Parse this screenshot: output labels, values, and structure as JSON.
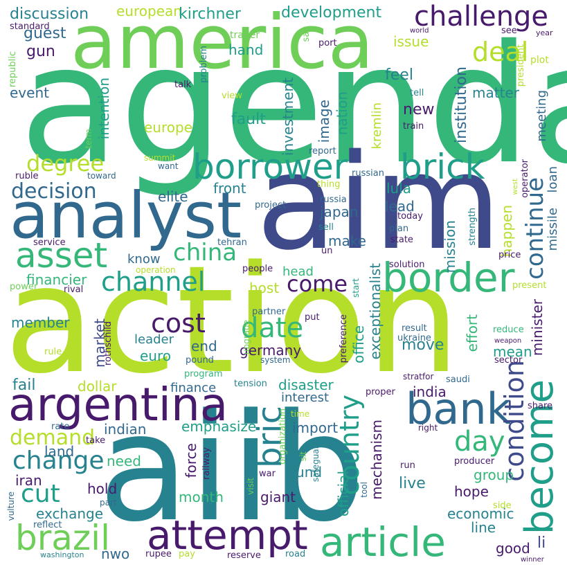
{
  "palette": {
    "purple": "#481a6c",
    "indigo": "#3e4a89",
    "steel": "#31688e",
    "teal": "#26828e",
    "sea": "#1f9e89",
    "green": "#35b779",
    "lime": "#6ece58",
    "yellow": "#b5de2b"
  },
  "words": {
    "agenda": "agenda",
    "action": "action",
    "aiib": "aiib",
    "aim": "aim",
    "america": "america",
    "analyst": "analyst",
    "argentina": "argentina",
    "border": "border",
    "borrower": "borrower",
    "brick": "brick",
    "bank": "bank",
    "become": "become",
    "article": "article",
    "attempt": "attempt",
    "brazil": "brazil",
    "bric": "bric",
    "asset": "asset",
    "challenge": "challenge",
    "deal": "deal",
    "continue": "continue",
    "condition": "condition",
    "china": "china",
    "channel": "channel",
    "decision": "decision",
    "degree": "degree",
    "change": "change",
    "cut": "cut",
    "cost": "cost",
    "date": "date",
    "come": "come",
    "country": "country",
    "day": "day",
    "demand": "demand",
    "discussion": "discussion",
    "european": "european",
    "kirchner": "kirchner",
    "development": "development",
    "guest": "guest",
    "gun": "gun",
    "hand": "hand",
    "issue": "issue",
    "feel": "feel",
    "event": "event",
    "intention": "intention",
    "europe": "europe",
    "fault": "fault",
    "image": "image",
    "nation": "nation",
    "investment": "investment",
    "kremlin": "kremlin",
    "new": "new",
    "institution": "institution",
    "matter": "matter",
    "meeting": "meeting",
    "loan": "loan",
    "missile": "missile",
    "elite": "elite",
    "front": "front",
    "japan": "japan",
    "lula": "lula",
    "lead": "lead",
    "mission": "mission",
    "happen": "happen",
    "know": "know",
    "make": "make",
    "head": "head",
    "host": "host",
    "financier": "financier",
    "market": "market",
    "member": "member",
    "leader": "leader",
    "end": "end",
    "euro": "euro",
    "germany": "germany",
    "office": "office",
    "exceptionalist": "exceptionalist",
    "move": "move",
    "mean": "mean",
    "effort": "effort",
    "minister": "minister",
    "fail": "fail",
    "dollar": "dollar",
    "finance": "finance",
    "disaster": "disaster",
    "interest": "interest",
    "india": "india",
    "indian": "indian",
    "emphasize": "emphasize",
    "import": "import",
    "land": "land",
    "need": "need",
    "force": "force",
    "fund": "fund",
    "group": "group",
    "iran": "iran",
    "hold": "hold",
    "month": "month",
    "giant": "giant",
    "live": "live",
    "hope": "hope",
    "exchange": "exchange",
    "economic": "economic",
    "official": "official",
    "mechanism": "mechanism",
    "line": "line",
    "nwo": "nwo",
    "good": "good",
    "li": "li",
    "standard": "standard",
    "republic": "republic",
    "trader": "trader",
    "say": "say",
    "world": "world",
    "see": "see",
    "year": "year",
    "port": "port",
    "problem": "problem",
    "president": "president",
    "plot": "plot",
    "talk": "talk",
    "view": "view",
    "tell": "tell",
    "train": "train",
    "term": "term",
    "summit": "summit",
    "want": "want",
    "report": "report",
    "toward": "toward",
    "ruble": "ruble",
    "russian": "russian",
    "operator": "operator",
    "west": "west",
    "thing": "thing",
    "russia": "russia",
    "project": "project",
    "today": "today",
    "sell": "sell",
    "plan": "plan",
    "strength": "strength",
    "service": "service",
    "tehran": "tehran",
    "state": "state",
    "un": "un",
    "price": "price",
    "people": "people",
    "operation": "operation",
    "solution": "solution",
    "power": "power",
    "rival": "rival",
    "start": "start",
    "present": "present",
    "partner": "partner",
    "put": "put",
    "preference": "preference",
    "result": "result",
    "ukraine": "ukraine",
    "reduce": "reduce",
    "weapon": "weapon",
    "sector": "sector",
    "rule": "rule",
    "rothschild": "rothschild",
    "upgrade": "upgrade",
    "pound": "pound",
    "system": "system",
    "program": "program",
    "tension": "tension",
    "stratfor": "stratfor",
    "saudi": "saudi",
    "share": "share",
    "rate": "rate",
    "take": "take",
    "proper": "proper",
    "time": "time",
    "right": "right",
    "organization": "organization",
    "sit": "sit",
    "safeguard": "safeguard",
    "railway": "railway",
    "war": "war",
    "visit": "visit",
    "producer": "producer",
    "run": "run",
    "tool": "tool",
    "vulture": "vulture",
    "part": "part",
    "side": "side",
    "reflect": "reflect",
    "washington": "washington",
    "rupee": "rupee",
    "pay": "pay",
    "reserve": "reserve",
    "road": "road",
    "winner": "winner"
  }
}
